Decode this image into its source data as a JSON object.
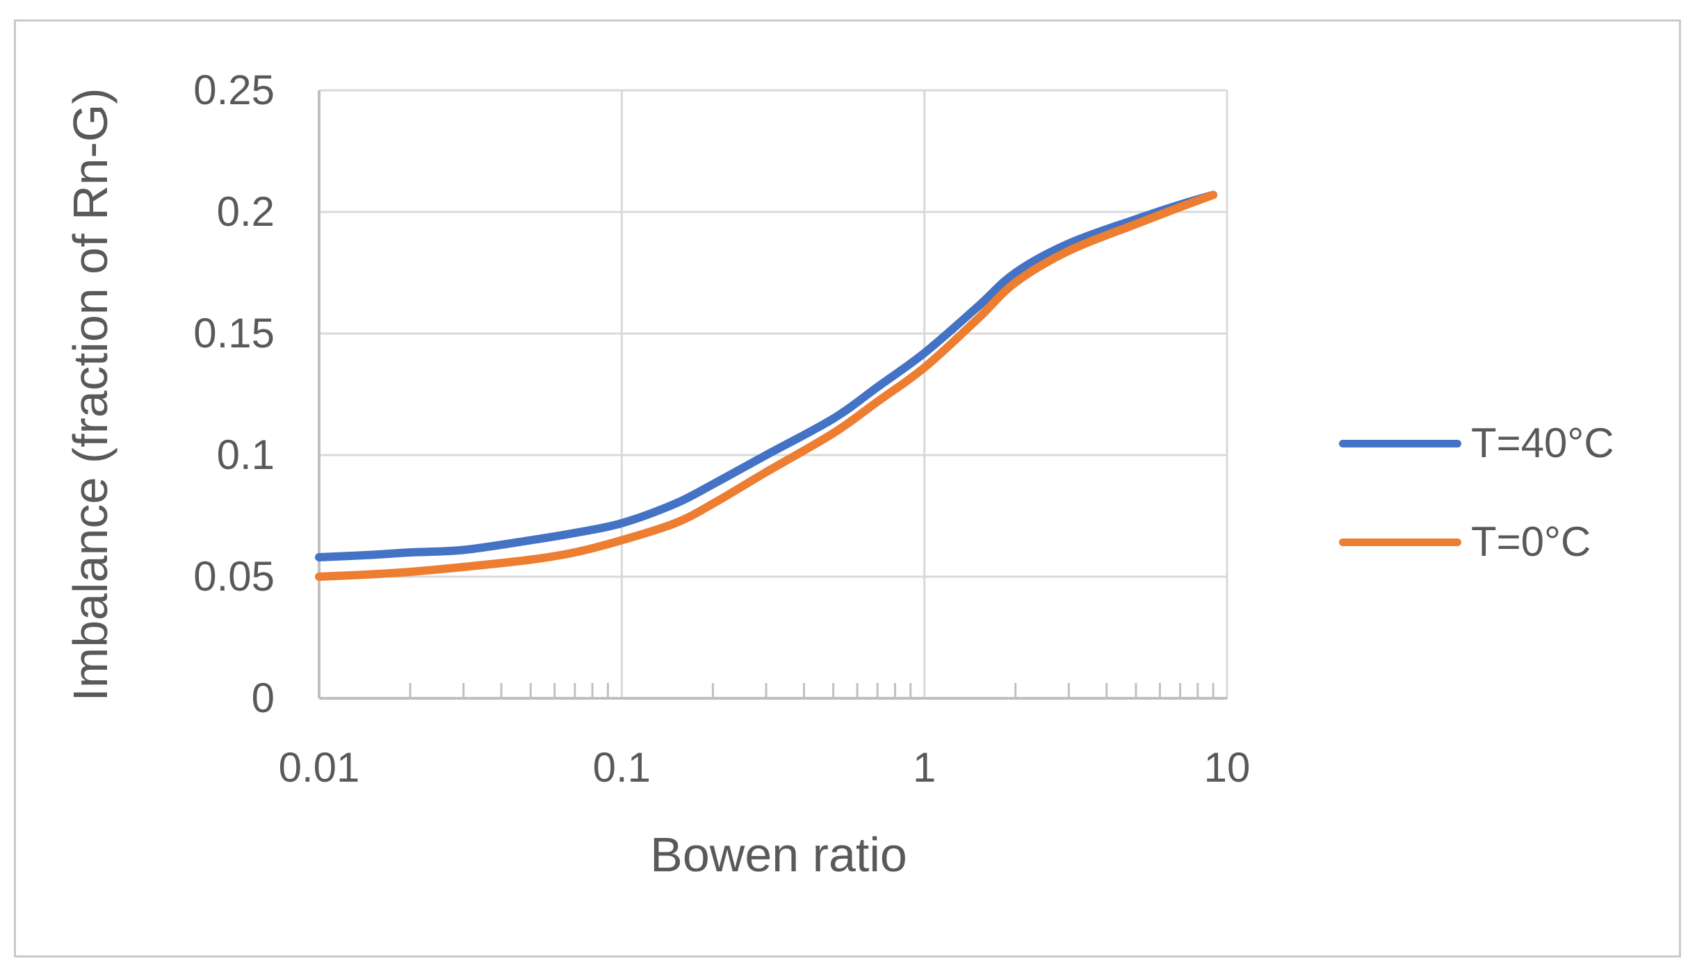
{
  "chart_data": {
    "type": "line",
    "title": "",
    "xlabel": "Bowen ratio",
    "ylabel": "Imbalance (fraction of Rn-G)",
    "x_scale": "log",
    "xlim": [
      0.01,
      10
    ],
    "ylim": [
      0,
      0.25
    ],
    "grid": true,
    "legend_position": "right",
    "x": [
      0.01,
      0.015,
      0.02,
      0.03,
      0.05,
      0.07,
      0.1,
      0.15,
      0.2,
      0.3,
      0.5,
      0.7,
      1.0,
      1.5,
      2.0,
      3.0,
      5.0,
      7.0,
      9.0
    ],
    "series": [
      {
        "name": "T=40°C",
        "color": "#4472C4",
        "values": [
          0.058,
          0.059,
          0.06,
          0.061,
          0.065,
          0.068,
          0.072,
          0.08,
          0.088,
          0.1,
          0.115,
          0.128,
          0.142,
          0.161,
          0.175,
          0.187,
          0.197,
          0.203,
          0.207
        ]
      },
      {
        "name": "T=0°C",
        "color": "#ED7D31",
        "values": [
          0.05,
          0.051,
          0.052,
          0.054,
          0.057,
          0.06,
          0.065,
          0.072,
          0.08,
          0.093,
          0.109,
          0.122,
          0.136,
          0.156,
          0.171,
          0.184,
          0.195,
          0.202,
          0.207
        ]
      }
    ],
    "x_ticks": [
      {
        "value": 0.01,
        "label": "0.01"
      },
      {
        "value": 0.1,
        "label": "0.1"
      },
      {
        "value": 1,
        "label": "1"
      },
      {
        "value": 10,
        "label": "10"
      }
    ],
    "y_ticks": [
      {
        "value": 0,
        "label": "0"
      },
      {
        "value": 0.05,
        "label": "0.05"
      },
      {
        "value": 0.1,
        "label": "0.1"
      },
      {
        "value": 0.15,
        "label": "0.15"
      },
      {
        "value": 0.2,
        "label": "0.2"
      },
      {
        "value": 0.25,
        "label": "0.25"
      }
    ],
    "colors": {
      "text": "#595959",
      "gridline": "#d9d9d9",
      "axis_line": "#bfbfbf",
      "minor_tick": "#c0c0c0",
      "outer_border": "#c9c9c9",
      "background": "#ffffff"
    }
  }
}
